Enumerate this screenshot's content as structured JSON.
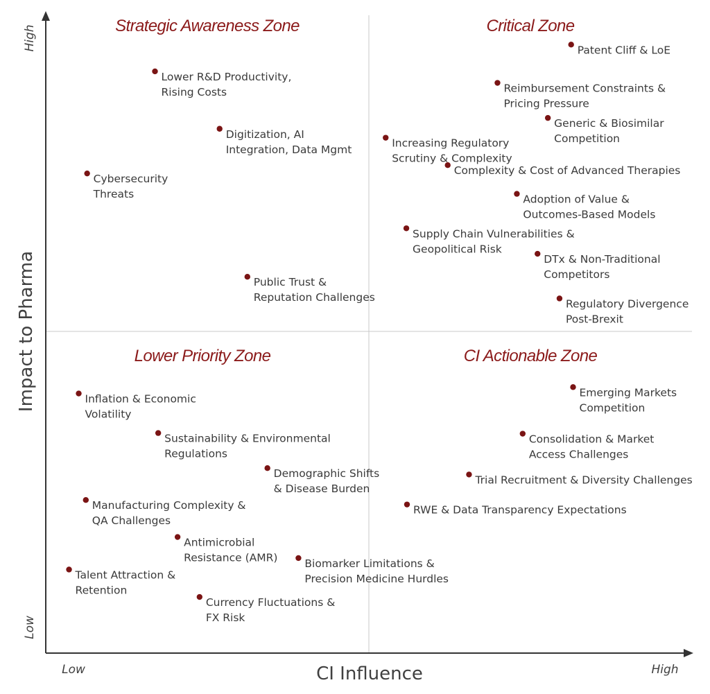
{
  "chart_data": {
    "type": "scatter",
    "xlabel": "CI Influence",
    "ylabel": "Impact to Pharma",
    "x_ticks": [
      "Low",
      "High"
    ],
    "y_ticks": [
      "Low",
      "High"
    ],
    "xlim": [
      0,
      100
    ],
    "ylim": [
      0,
      100
    ],
    "grid": false,
    "zones": [
      {
        "name": "Strategic Awareness Zone",
        "quadrant": "top-left"
      },
      {
        "name": "Critical Zone",
        "quadrant": "top-right"
      },
      {
        "name": "Lower Priority Zone",
        "quadrant": "bottom-left"
      },
      {
        "name": "CI Actionable Zone",
        "quadrant": "bottom-right"
      }
    ],
    "points": [
      {
        "label": [
          "Patent Cliff & LoE"
        ],
        "x": 81.3,
        "y": 95.4
      },
      {
        "label": [
          "Reimbursement Constraints &",
          "Pricing Pressure"
        ],
        "x": 69.9,
        "y": 89.4
      },
      {
        "label": [
          "Generic & Biosimilar",
          "Competition"
        ],
        "x": 77.7,
        "y": 83.9
      },
      {
        "label": [
          "Increasing Regulatory",
          "Scrutiny & Complexity"
        ],
        "x": 52.6,
        "y": 80.8
      },
      {
        "label": [
          "Complexity & Cost of Advanced Therapies"
        ],
        "x": 62.2,
        "y": 76.5
      },
      {
        "label": [
          "Adoption of Value &",
          "Outcomes-Based Models"
        ],
        "x": 72.9,
        "y": 72.0
      },
      {
        "label": [
          "Supply Chain Vulnerabilities &",
          "Geopolitical Risk"
        ],
        "x": 55.8,
        "y": 66.6
      },
      {
        "label": [
          "DTx & Non-Traditional",
          "Competitors"
        ],
        "x": 76.1,
        "y": 62.6
      },
      {
        "label": [
          "Regulatory Divergence",
          "Post-Brexit"
        ],
        "x": 79.5,
        "y": 55.6
      },
      {
        "label": [
          "Lower R&D Productivity,",
          "Rising Costs"
        ],
        "x": 16.9,
        "y": 91.2
      },
      {
        "label": [
          "Digitization, AI",
          "Integration, Data Mgmt"
        ],
        "x": 26.9,
        "y": 82.2
      },
      {
        "label": [
          "Cybersecurity",
          "Threats"
        ],
        "x": 6.4,
        "y": 75.2
      },
      {
        "label": [
          "Public Trust &",
          "Reputation Challenges"
        ],
        "x": 31.2,
        "y": 59.0
      },
      {
        "label": [
          "Emerging Markets",
          "Competition"
        ],
        "x": 81.6,
        "y": 41.7
      },
      {
        "label": [
          "Consolidation & Market",
          "Access Challenges"
        ],
        "x": 73.8,
        "y": 34.4
      },
      {
        "label": [
          "Trial Recruitment & Diversity Challenges"
        ],
        "x": 65.5,
        "y": 28.0
      },
      {
        "label": [
          "RWE & Data Transparency Expectations"
        ],
        "x": 55.9,
        "y": 23.3
      },
      {
        "label": [
          "Inflation & Economic",
          "Volatility"
        ],
        "x": 5.1,
        "y": 40.7
      },
      {
        "label": [
          "Sustainability & Environmental",
          "Regulations"
        ],
        "x": 17.4,
        "y": 34.5
      },
      {
        "label": [
          "Demographic Shifts",
          "& Disease Burden"
        ],
        "x": 34.3,
        "y": 29.0
      },
      {
        "label": [
          "Manufacturing Complexity &",
          "QA Challenges"
        ],
        "x": 6.2,
        "y": 24.0
      },
      {
        "label": [
          "Antimicrobial",
          "Resistance (AMR)"
        ],
        "x": 20.4,
        "y": 18.2
      },
      {
        "label": [
          "Biomarker Limitations &",
          "Precision Medicine Hurdles"
        ],
        "x": 39.1,
        "y": 14.9
      },
      {
        "label": [
          "Talent Attraction &",
          "Retention"
        ],
        "x": 3.6,
        "y": 13.1
      },
      {
        "label": [
          "Currency Fluctuations &",
          "FX Risk"
        ],
        "x": 23.8,
        "y": 8.8
      }
    ]
  }
}
